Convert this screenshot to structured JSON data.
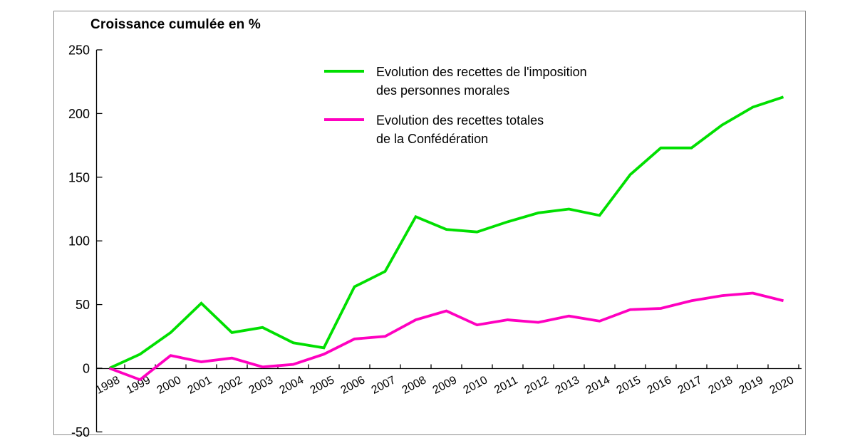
{
  "chart": {
    "title": "Croissance cumulée en %"
  },
  "legend": {
    "entries": [
      {
        "label_line1": "Evolution des recettes de l'imposition",
        "label_line2": "des personnes morales"
      },
      {
        "label_line1": "Evolution des recettes totales",
        "label_line2": "de la Confédération"
      }
    ]
  },
  "chart_data": {
    "type": "line",
    "title": "Croissance cumulée en %",
    "ylabel": "Croissance cumulée en %",
    "x": [
      1998,
      1999,
      2000,
      2001,
      2002,
      2003,
      2004,
      2005,
      2006,
      2007,
      2008,
      2009,
      2010,
      2011,
      2012,
      2013,
      2014,
      2015,
      2016,
      2017,
      2018,
      2019,
      2020
    ],
    "series": [
      {
        "name": "Evolution des recettes de l'imposition des personnes morales",
        "color": "#00DF00",
        "values": [
          0,
          11,
          28,
          51,
          28,
          32,
          20,
          16,
          64,
          76,
          119,
          109,
          107,
          115,
          122,
          125,
          120,
          152,
          173,
          173,
          191,
          205,
          213
        ]
      },
      {
        "name": "Evolution des recettes totales de la Confédération",
        "color": "#FF00C0",
        "values": [
          0,
          -9,
          10,
          5,
          8,
          1,
          3,
          11,
          23,
          25,
          38,
          45,
          34,
          38,
          36,
          41,
          37,
          46,
          47,
          53,
          57,
          59,
          53
        ]
      }
    ],
    "ylim": [
      -50,
      250
    ],
    "yticks": [
      250,
      200,
      150,
      100,
      50,
      0,
      -50
    ],
    "grid": false,
    "legend_position": "inside-top-center",
    "axis_color": "#000000",
    "frame_color": "#8c8c8c"
  }
}
